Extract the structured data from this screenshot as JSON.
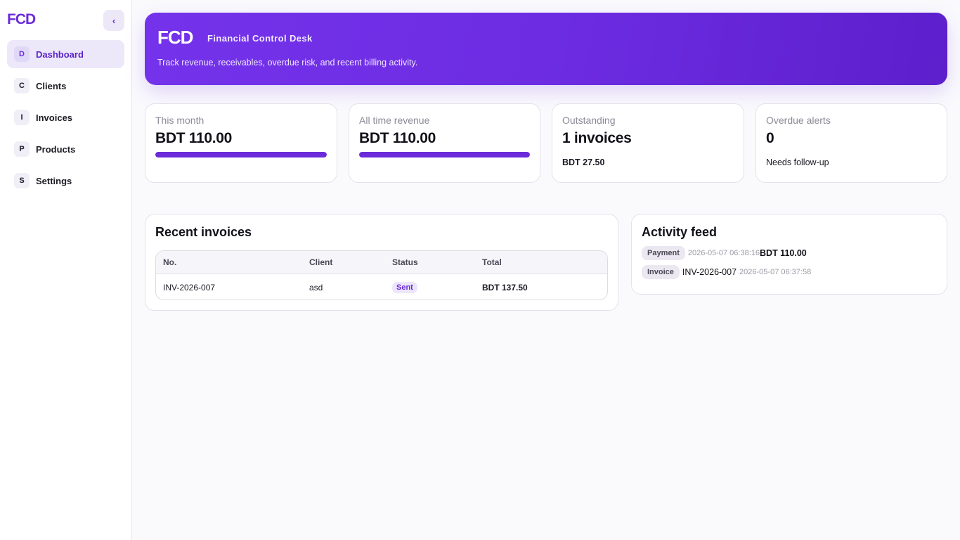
{
  "sidebar": {
    "brand": "FCD",
    "collapse_icon": "‹",
    "items": [
      {
        "letter": "D",
        "label": "Dashboard",
        "active": true
      },
      {
        "letter": "C",
        "label": "Clients",
        "active": false
      },
      {
        "letter": "I",
        "label": "Invoices",
        "active": false
      },
      {
        "letter": "P",
        "label": "Products",
        "active": false
      },
      {
        "letter": "S",
        "label": "Settings",
        "active": false
      }
    ]
  },
  "hero": {
    "title": "FCD",
    "subtitle": "Financial Control Desk",
    "description": "Track revenue, receivables, overdue risk, and recent billing activity."
  },
  "stats": [
    {
      "label": "This month",
      "value": "BDT 110.00",
      "progress": 1.0
    },
    {
      "label": "All time revenue",
      "value": "BDT 110.00",
      "progress": 1.0
    },
    {
      "label": "Outstanding",
      "value": "1 invoices",
      "note": "BDT 27.50"
    },
    {
      "label": "Overdue alerts",
      "value": "0",
      "note": "Needs follow-up"
    }
  ],
  "recent_invoices": {
    "title": "Recent invoices",
    "columns": [
      "No.",
      "Client",
      "Status",
      "Total"
    ],
    "rows": [
      {
        "no": "INV-2026-007",
        "client": "asd",
        "status": "Sent",
        "total": "BDT 137.50"
      }
    ]
  },
  "activity_feed": {
    "title": "Activity feed",
    "items": [
      {
        "type": "Payment",
        "time": "2026-05-07 06:38:16",
        "amount": "BDT 110.00"
      },
      {
        "type": "Invoice",
        "ref": "INV-2026-007",
        "time": "2026-05-07 06:37:58"
      }
    ]
  },
  "colors": {
    "accent": "#6c2bd9",
    "hero_start": "#7433ea",
    "hero_end": "#5d1fcc"
  }
}
